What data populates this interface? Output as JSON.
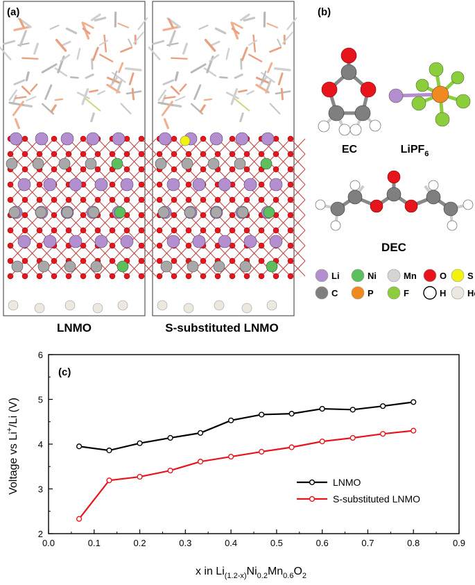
{
  "panel_a": {
    "label": "(a)",
    "left_caption": "LNMO",
    "right_caption": "S-substituted LNMO"
  },
  "panel_b": {
    "label": "(b)",
    "molecules": {
      "ec": "EC",
      "lipf6": {
        "base": "LiPF",
        "sub": "6"
      },
      "dec": "DEC"
    },
    "legend": [
      {
        "symbol": "Li",
        "color": "#b48fd0"
      },
      {
        "symbol": "Ni",
        "color": "#5cbf5c"
      },
      {
        "symbol": "Mn",
        "color": "#d4d4d4"
      },
      {
        "symbol": "O",
        "color": "#e8141c"
      },
      {
        "symbol": "S",
        "color": "#f2f20f"
      },
      {
        "symbol": "C",
        "color": "#7f7f7f"
      },
      {
        "symbol": "P",
        "color": "#f08a1e"
      },
      {
        "symbol": "F",
        "color": "#8ccd3c"
      },
      {
        "symbol": "H",
        "color": "#ffffff"
      },
      {
        "symbol": "He",
        "color": "#ece8e0"
      }
    ]
  },
  "panel_c": {
    "label": "(c)",
    "y_axis_label": {
      "main": "Voltage vs Li",
      "sup": "+",
      "rest": "/Li (V)"
    },
    "x_axis_label": {
      "prefix": "x in Li",
      "sub1": "(1.2-x)",
      "mid1": "Ni",
      "sub2": "0.2",
      "mid2": "Mn",
      "sub3": "0.6",
      "mid3": "O",
      "sub4": "2"
    }
  },
  "chart_data": {
    "type": "line",
    "xlim": [
      0.0,
      0.9
    ],
    "ylim": [
      2,
      6
    ],
    "x_ticks": [
      "0.0",
      "0.1",
      "0.2",
      "0.3",
      "0.4",
      "0.5",
      "0.6",
      "0.7",
      "0.8",
      "0.9"
    ],
    "y_ticks": [
      "2",
      "3",
      "4",
      "5",
      "6"
    ],
    "legend_position": "lower-right",
    "grid": false,
    "x": [
      0.067,
      0.133,
      0.2,
      0.267,
      0.333,
      0.4,
      0.467,
      0.533,
      0.6,
      0.667,
      0.733,
      0.8
    ],
    "series": [
      {
        "name": "LNMO",
        "color": "#000000",
        "values": [
          3.95,
          3.86,
          4.02,
          4.14,
          4.25,
          4.53,
          4.66,
          4.68,
          4.79,
          4.77,
          4.85,
          4.94
        ]
      },
      {
        "name": "S-substituted LNMO",
        "color": "#e8141c",
        "values": [
          2.33,
          3.19,
          3.27,
          3.41,
          3.61,
          3.72,
          3.83,
          3.93,
          4.06,
          4.14,
          4.23,
          4.3
        ]
      }
    ]
  }
}
